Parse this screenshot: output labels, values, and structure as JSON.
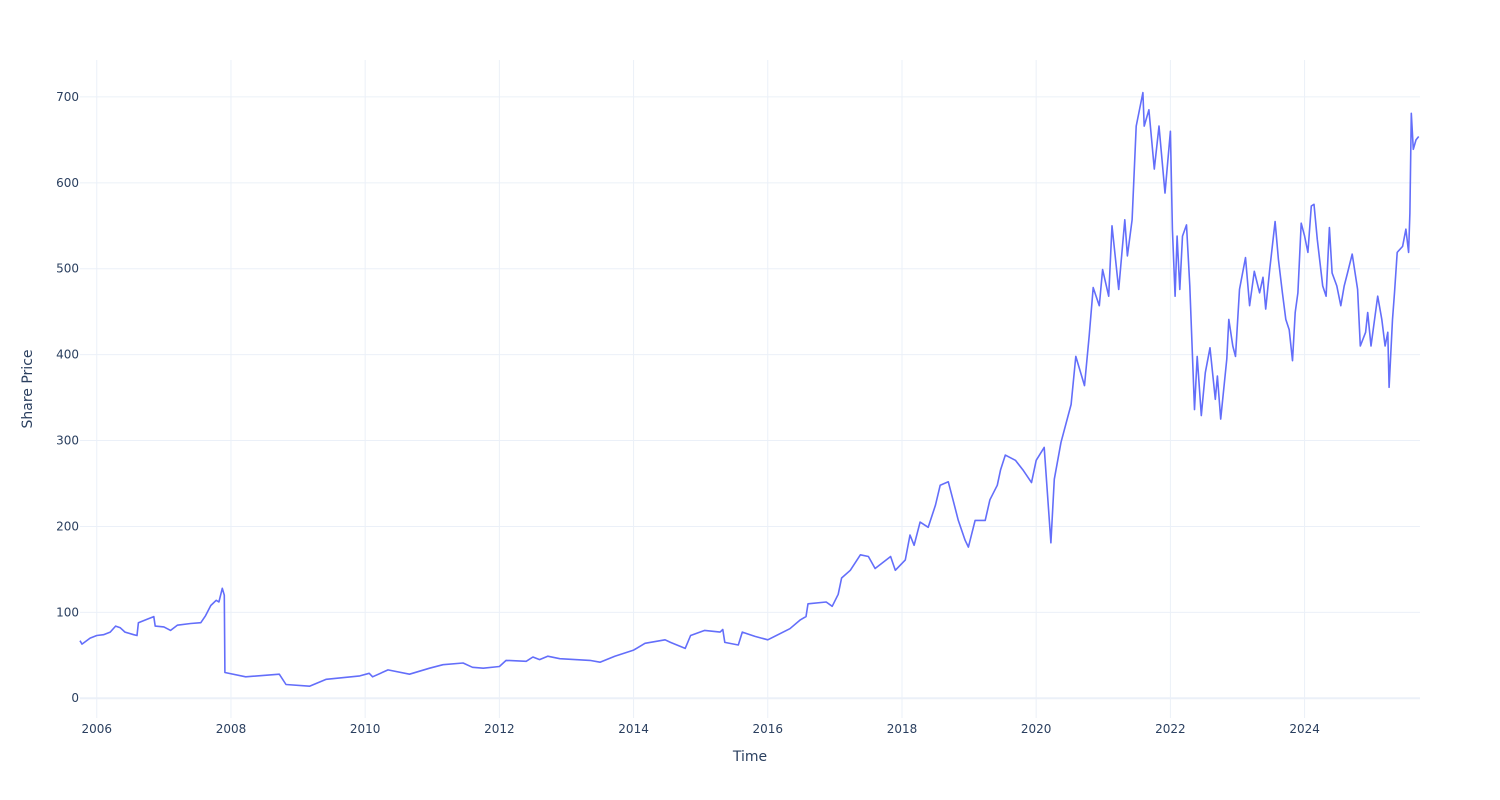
{
  "chart_data": {
    "type": "line",
    "title": "",
    "xlabel": "Time",
    "ylabel": "Share Price",
    "xlim": [
      2005.75,
      2025.72
    ],
    "ylim": [
      -23,
      743
    ],
    "grid": true,
    "legend": "none",
    "line_color": "#636efa",
    "grid_color": "#ebf0f8",
    "text_color": "#2a3f5f",
    "x_ticks": [
      2006,
      2008,
      2010,
      2012,
      2014,
      2016,
      2018,
      2020,
      2022,
      2024
    ],
    "x_tick_labels": [
      "2006",
      "2008",
      "2010",
      "2012",
      "2014",
      "2016",
      "2018",
      "2020",
      "2022",
      "2024"
    ],
    "y_ticks": [
      0,
      100,
      200,
      300,
      400,
      500,
      600,
      700
    ],
    "y_tick_labels": [
      "0",
      "100",
      "200",
      "300",
      "400",
      "500",
      "600",
      "700"
    ],
    "series": [
      {
        "name": "Share Price",
        "x": [
          2005.75,
          2005.78,
          2005.9,
          2006.0,
          2006.1,
          2006.2,
          2006.28,
          2006.35,
          2006.42,
          2006.55,
          2006.6,
          2006.62,
          2006.75,
          2006.85,
          2006.87,
          2007.0,
          2007.1,
          2007.2,
          2007.4,
          2007.55,
          2007.62,
          2007.7,
          2007.78,
          2007.82,
          2007.87,
          2007.9,
          2007.91,
          2008.22,
          2008.72,
          2008.82,
          2009.17,
          2009.42,
          2009.92,
          2010.06,
          2010.11,
          2010.34,
          2010.66,
          2010.96,
          2011.16,
          2011.46,
          2011.6,
          2011.76,
          2012.0,
          2012.1,
          2012.4,
          2012.5,
          2012.6,
          2012.72,
          2012.9,
          2013.35,
          2013.5,
          2013.72,
          2014.0,
          2014.17,
          2014.47,
          2014.55,
          2014.77,
          2014.85,
          2015.06,
          2015.29,
          2015.33,
          2015.36,
          2015.56,
          2015.62,
          2015.81,
          2016.0,
          2016.33,
          2016.48,
          2016.57,
          2016.6,
          2016.87,
          2016.96,
          2017.05,
          2017.1,
          2017.23,
          2017.38,
          2017.5,
          2017.6,
          2017.83,
          2017.9,
          2018.05,
          2018.12,
          2018.18,
          2018.27,
          2018.39,
          2018.5,
          2018.57,
          2018.69,
          2018.76,
          2018.84,
          2018.94,
          2018.99,
          2019.09,
          2019.24,
          2019.31,
          2019.42,
          2019.47,
          2019.54,
          2019.69,
          2019.8,
          2019.93,
          2020.0,
          2020.12,
          2020.22,
          2020.27,
          2020.37,
          2020.52,
          2020.59,
          2020.72,
          2020.79,
          2020.85,
          2020.94,
          2020.99,
          2021.08,
          2021.13,
          2021.23,
          2021.32,
          2021.36,
          2021.43,
          2021.49,
          2021.59,
          2021.61,
          2021.68,
          2021.76,
          2021.83,
          2021.92,
          2022.0,
          2022.03,
          2022.07,
          2022.1,
          2022.14,
          2022.18,
          2022.24,
          2022.29,
          2022.36,
          2022.4,
          2022.46,
          2022.52,
          2022.59,
          2022.67,
          2022.7,
          2022.75,
          2022.84,
          2022.87,
          2022.93,
          2022.97,
          2023.03,
          2023.12,
          2023.18,
          2023.25,
          2023.33,
          2023.38,
          2023.42,
          2023.48,
          2023.56,
          2023.61,
          2023.67,
          2023.72,
          2023.77,
          2023.82,
          2023.86,
          2023.9,
          2023.95,
          2024.0,
          2024.05,
          2024.1,
          2024.14,
          2024.19,
          2024.27,
          2024.32,
          2024.37,
          2024.41,
          2024.48,
          2024.54,
          2024.59,
          2024.64,
          2024.71,
          2024.79,
          2024.83,
          2024.91,
          2024.94,
          2024.99,
          2025.09,
          2025.15,
          2025.2,
          2025.24,
          2025.26,
          2025.31,
          2025.34,
          2025.38,
          2025.46,
          2025.51,
          2025.55,
          2025.57,
          2025.59,
          2025.62,
          2025.66,
          2025.7
        ],
        "y": [
          67,
          63,
          70,
          73,
          74,
          77,
          84,
          82,
          77,
          74,
          73,
          88,
          92,
          95,
          84,
          83,
          79,
          85,
          87,
          88,
          96,
          108,
          114,
          112,
          128,
          120,
          30,
          25,
          28,
          16,
          14,
          22,
          26,
          29,
          25,
          33,
          28,
          35,
          39,
          41,
          36,
          35,
          37,
          44,
          43,
          48,
          45,
          49,
          46,
          44,
          42,
          49,
          56,
          64,
          68,
          65,
          58,
          73,
          79,
          77,
          80,
          65,
          62,
          77,
          72,
          68,
          81,
          91,
          95,
          110,
          112,
          107,
          121,
          140,
          149,
          167,
          165,
          151,
          165,
          149,
          161,
          190,
          178,
          205,
          199,
          225,
          248,
          252,
          231,
          207,
          184,
          176,
          207,
          207,
          231,
          248,
          266,
          283,
          277,
          266,
          251,
          277,
          292,
          181,
          255,
          298,
          342,
          398,
          364,
          422,
          478,
          457,
          499,
          468,
          550,
          476,
          557,
          515,
          557,
          666,
          705,
          666,
          685,
          616,
          666,
          588,
          660,
          546,
          468,
          538,
          476,
          538,
          551,
          480,
          336,
          398,
          329,
          379,
          408,
          348,
          375,
          325,
          395,
          441,
          410,
          398,
          476,
          513,
          457,
          497,
          472,
          490,
          453,
          499,
          555,
          511,
          472,
          441,
          429,
          393,
          449,
          472,
          553,
          538,
          519,
          573,
          575,
          534,
          480,
          468,
          548,
          495,
          480,
          457,
          480,
          495,
          517,
          476,
          410,
          426,
          449,
          410,
          468,
          441,
          410,
          426,
          362,
          441,
          472,
          519,
          526,
          546,
          519,
          565,
          681,
          639,
          650,
          654
        ]
      }
    ]
  }
}
